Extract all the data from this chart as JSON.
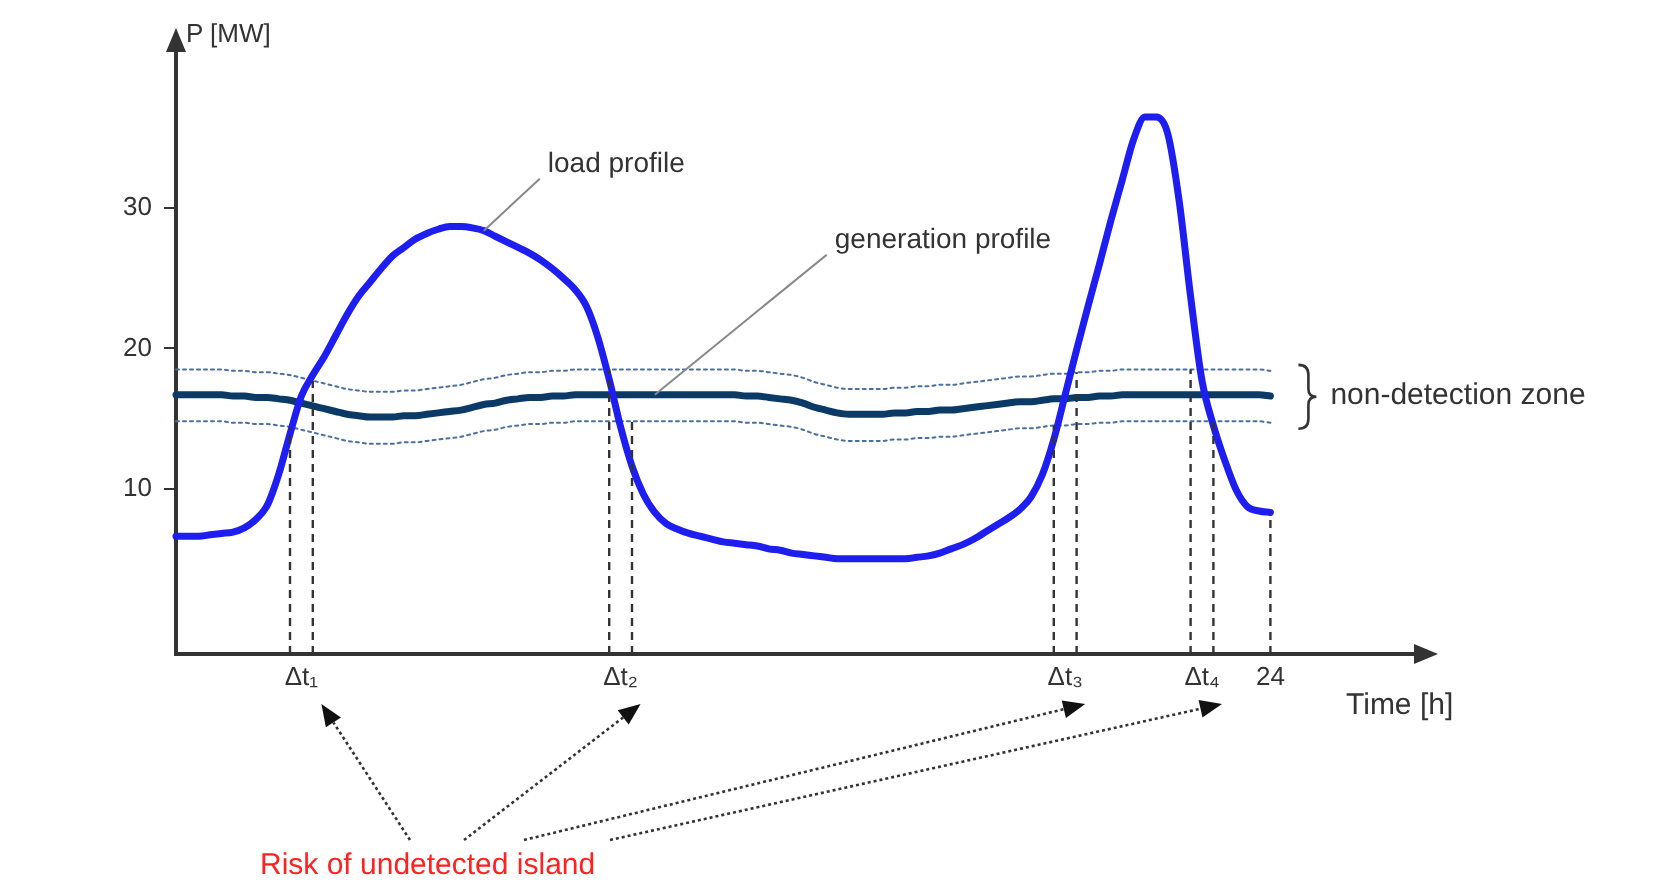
{
  "chart_data": {
    "type": "line",
    "xlabel": "Time [h]",
    "ylabel": "P [MW]",
    "categories": [
      null,
      null,
      null,
      null,
      null,
      null,
      null,
      null,
      null,
      null,
      null,
      "Δt₁",
      null,
      null,
      null,
      null,
      null,
      null,
      null,
      null,
      null,
      null,
      null,
      null,
      null,
      null,
      null,
      null,
      null,
      null,
      null,
      null,
      null,
      null,
      null,
      null,
      null,
      null,
      null,
      "Δt₂",
      null,
      null,
      null,
      null,
      null,
      null,
      null,
      null,
      null,
      null,
      null,
      null,
      null,
      null,
      null,
      null,
      null,
      null,
      null,
      null,
      null,
      null,
      null,
      null,
      null,
      null,
      null,
      null,
      null,
      null,
      null,
      null,
      null,
      null,
      null,
      null,
      null,
      null,
      "Δt₃",
      null,
      null,
      null,
      null,
      null,
      null,
      null,
      null,
      null,
      null,
      null,
      "Δt₄",
      null,
      null,
      null,
      null,
      null,
      "24",
      null,
      null,
      null,
      null,
      null,
      null,
      null,
      null,
      null,
      null,
      null,
      null,
      null,
      null
    ],
    "ylim": [
      -1.8,
      42
    ],
    "yticks": [
      10,
      20,
      30
    ],
    "grid": false,
    "legend": false,
    "marker": "none",
    "series": [
      {
        "name": "load profile",
        "color": "#1e1ef0",
        "values": [
          6.6,
          6.6,
          6.6,
          6.7,
          6.8,
          6.9,
          7.2,
          7.8,
          8.8,
          11.0,
          13.9,
          16.6,
          18.1,
          19.4,
          20.9,
          22.4,
          23.7,
          24.7,
          25.7,
          26.6,
          27.2,
          27.8,
          28.2,
          28.5,
          28.7,
          28.7,
          28.6,
          28.4,
          28.0,
          27.6,
          27.2,
          26.8,
          26.3,
          25.7,
          25.0,
          24.2,
          23.0,
          20.8,
          17.8,
          14.4,
          11.6,
          9.6,
          8.3,
          7.5,
          7.1,
          6.8,
          6.6,
          6.4,
          6.2,
          6.1,
          6.0,
          5.9,
          5.7,
          5.6,
          5.4,
          5.3,
          5.2,
          5.1,
          5.0,
          5.0,
          5.0,
          5.0,
          5.0,
          5.0,
          5.0,
          5.1,
          5.2,
          5.4,
          5.7,
          6.0,
          6.4,
          6.9,
          7.4,
          7.9,
          8.5,
          9.4,
          11.0,
          13.5,
          16.7,
          19.9,
          23.0,
          26.0,
          29.1,
          32.0,
          34.9,
          36.5,
          36.5,
          35.3,
          30.5,
          23.7,
          17.7,
          14.5,
          12.0,
          9.9,
          8.7,
          8.4,
          8.3,
          null,
          null,
          null,
          null,
          null,
          null,
          null,
          null,
          null,
          null,
          null,
          null,
          null,
          null
        ]
      },
      {
        "name": "generation profile",
        "color": "#0b3a66",
        "values": [
          16.7,
          16.7,
          16.7,
          16.7,
          16.7,
          16.6,
          16.6,
          16.5,
          16.5,
          16.4,
          16.3,
          16.1,
          15.9,
          15.7,
          15.5,
          15.3,
          15.2,
          15.1,
          15.1,
          15.1,
          15.2,
          15.2,
          15.3,
          15.4,
          15.5,
          15.6,
          15.8,
          16.0,
          16.1,
          16.3,
          16.4,
          16.5,
          16.5,
          16.6,
          16.6,
          16.7,
          16.7,
          16.7,
          16.7,
          16.7,
          16.7,
          16.7,
          16.7,
          16.7,
          16.7,
          16.7,
          16.7,
          16.7,
          16.7,
          16.7,
          16.6,
          16.6,
          16.5,
          16.4,
          16.3,
          16.1,
          15.8,
          15.6,
          15.4,
          15.3,
          15.3,
          15.3,
          15.3,
          15.4,
          15.4,
          15.5,
          15.5,
          15.6,
          15.6,
          15.7,
          15.8,
          15.9,
          16.0,
          16.1,
          16.2,
          16.2,
          16.3,
          16.4,
          16.4,
          16.5,
          16.5,
          16.6,
          16.6,
          16.7,
          16.7,
          16.7,
          16.7,
          16.7,
          16.7,
          16.7,
          16.7,
          16.7,
          16.7,
          16.7,
          16.7,
          16.7,
          16.6,
          null,
          null,
          null,
          null,
          null,
          null,
          null,
          null,
          null,
          null,
          null,
          null,
          null,
          null
        ]
      },
      {
        "color": "#4a6fa0",
        "line_style": "dotted",
        "values": [
          18.5,
          18.5,
          18.5,
          18.5,
          18.5,
          18.4,
          18.4,
          18.3,
          18.3,
          18.2,
          18.1,
          17.9,
          17.7,
          17.5,
          17.3,
          17.1,
          17.0,
          16.9,
          16.9,
          16.9,
          17.0,
          17.0,
          17.1,
          17.2,
          17.3,
          17.4,
          17.6,
          17.8,
          17.9,
          18.1,
          18.2,
          18.3,
          18.3,
          18.4,
          18.4,
          18.5,
          18.5,
          18.5,
          18.5,
          18.5,
          18.5,
          18.5,
          18.5,
          18.5,
          18.5,
          18.5,
          18.5,
          18.5,
          18.5,
          18.5,
          18.4,
          18.4,
          18.3,
          18.2,
          18.1,
          17.9,
          17.6,
          17.4,
          17.2,
          17.1,
          17.1,
          17.1,
          17.1,
          17.2,
          17.2,
          17.3,
          17.3,
          17.4,
          17.4,
          17.5,
          17.6,
          17.7,
          17.8,
          17.9,
          18.0,
          18.0,
          18.1,
          18.2,
          18.2,
          18.3,
          18.3,
          18.4,
          18.4,
          18.5,
          18.5,
          18.5,
          18.5,
          18.5,
          18.5,
          18.5,
          18.5,
          18.5,
          18.5,
          18.5,
          18.5,
          18.5,
          18.4,
          null,
          null,
          null,
          null,
          null,
          null,
          null,
          null,
          null,
          null,
          null,
          null,
          null,
          null
        ]
      },
      {
        "color": "#4a6fa0",
        "line_style": "dotted",
        "values": [
          14.8,
          14.8,
          14.8,
          14.8,
          14.8,
          14.7,
          14.7,
          14.6,
          14.6,
          14.5,
          14.4,
          14.2,
          14.0,
          13.8,
          13.6,
          13.4,
          13.3,
          13.2,
          13.2,
          13.2,
          13.3,
          13.3,
          13.4,
          13.5,
          13.6,
          13.7,
          13.9,
          14.1,
          14.2,
          14.4,
          14.5,
          14.6,
          14.6,
          14.7,
          14.7,
          14.8,
          14.8,
          14.8,
          14.8,
          14.8,
          14.8,
          14.8,
          14.8,
          14.8,
          14.8,
          14.8,
          14.8,
          14.8,
          14.8,
          14.8,
          14.7,
          14.7,
          14.6,
          14.5,
          14.4,
          14.2,
          13.9,
          13.7,
          13.5,
          13.4,
          13.4,
          13.4,
          13.4,
          13.5,
          13.5,
          13.6,
          13.6,
          13.7,
          13.7,
          13.8,
          13.9,
          14.0,
          14.1,
          14.2,
          14.3,
          14.3,
          14.4,
          14.5,
          14.5,
          14.6,
          14.6,
          14.7,
          14.7,
          14.8,
          14.8,
          14.8,
          14.8,
          14.8,
          14.8,
          14.8,
          14.8,
          14.8,
          14.8,
          14.8,
          14.8,
          14.8,
          14.7,
          null,
          null,
          null,
          null,
          null,
          null,
          null,
          null,
          null,
          null,
          null,
          null,
          null,
          null
        ]
      }
    ],
    "annotations": [
      "non-detection zone",
      "Risk of undetected island"
    ]
  }
}
